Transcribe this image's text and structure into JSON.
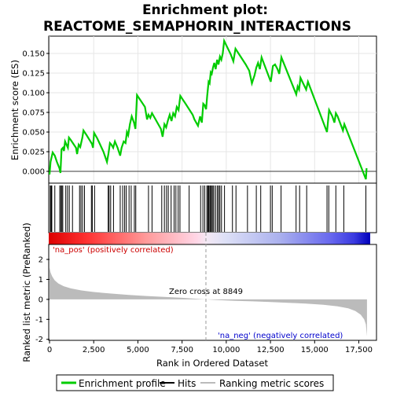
{
  "chart_data": {
    "type": "line",
    "title_line1": "Enrichment plot:",
    "title_line2": "REACTOME_SEMAPHORIN_INTERACTIONS",
    "x_label": "Rank in Ordered Dataset",
    "x_range": [
      0,
      18500
    ],
    "x_ticks": [
      0,
      2500,
      5000,
      7500,
      10000,
      12500,
      15000,
      17500
    ],
    "x_tick_labels": [
      "0",
      "2,500",
      "5,000",
      "7,500",
      "10,000",
      "12,500",
      "15,000",
      "17,500"
    ],
    "enrichment": {
      "y_label": "Enrichment score (ES)",
      "y_range": [
        -0.015,
        0.172
      ],
      "y_ticks": [
        0.0,
        0.025,
        0.05,
        0.075,
        0.1,
        0.125,
        0.15
      ],
      "y_tick_labels": [
        "0.000",
        "0.025",
        "0.050",
        "0.075",
        "0.100",
        "0.125",
        "0.150"
      ],
      "color": "#00cc00",
      "points": [
        [
          0,
          -0.004
        ],
        [
          60,
          0.012
        ],
        [
          180,
          0.024
        ],
        [
          300,
          0.02
        ],
        [
          420,
          0.012
        ],
        [
          560,
          0.004
        ],
        [
          620,
          -0.002
        ],
        [
          680,
          0.028
        ],
        [
          760,
          0.03
        ],
        [
          820,
          0.026
        ],
        [
          880,
          0.038
        ],
        [
          960,
          0.034
        ],
        [
          1040,
          0.03
        ],
        [
          1100,
          0.043
        ],
        [
          1200,
          0.04
        ],
        [
          1500,
          0.03
        ],
        [
          1560,
          0.022
        ],
        [
          1650,
          0.034
        ],
        [
          1740,
          0.031
        ],
        [
          1860,
          0.043
        ],
        [
          1920,
          0.052
        ],
        [
          2100,
          0.046
        ],
        [
          2400,
          0.035
        ],
        [
          2460,
          0.03
        ],
        [
          2520,
          0.049
        ],
        [
          2700,
          0.042
        ],
        [
          3050,
          0.025
        ],
        [
          3250,
          0.012
        ],
        [
          3330,
          0.022
        ],
        [
          3420,
          0.036
        ],
        [
          3500,
          0.034
        ],
        [
          3600,
          0.03
        ],
        [
          3700,
          0.038
        ],
        [
          3850,
          0.03
        ],
        [
          4000,
          0.02
        ],
        [
          4080,
          0.03
        ],
        [
          4200,
          0.038
        ],
        [
          4300,
          0.036
        ],
        [
          4380,
          0.05
        ],
        [
          4450,
          0.046
        ],
        [
          4550,
          0.06
        ],
        [
          4650,
          0.07
        ],
        [
          4780,
          0.062
        ],
        [
          4860,
          0.054
        ],
        [
          4950,
          0.097
        ],
        [
          5400,
          0.082
        ],
        [
          5520,
          0.066
        ],
        [
          5600,
          0.072
        ],
        [
          5700,
          0.068
        ],
        [
          5800,
          0.074
        ],
        [
          6300,
          0.054
        ],
        [
          6400,
          0.044
        ],
        [
          6500,
          0.06
        ],
        [
          6600,
          0.056
        ],
        [
          6700,
          0.065
        ],
        [
          6800,
          0.072
        ],
        [
          6900,
          0.064
        ],
        [
          7000,
          0.074
        ],
        [
          7100,
          0.07
        ],
        [
          7200,
          0.082
        ],
        [
          7300,
          0.078
        ],
        [
          7400,
          0.096
        ],
        [
          7700,
          0.086
        ],
        [
          8100,
          0.072
        ],
        [
          8200,
          0.066
        ],
        [
          8400,
          0.058
        ],
        [
          8520,
          0.07
        ],
        [
          8620,
          0.062
        ],
        [
          8700,
          0.086
        ],
        [
          8780,
          0.084
        ],
        [
          8860,
          0.079
        ],
        [
          8920,
          0.096
        ],
        [
          9000,
          0.114
        ],
        [
          9060,
          0.112
        ],
        [
          9120,
          0.126
        ],
        [
          9180,
          0.124
        ],
        [
          9250,
          0.132
        ],
        [
          9320,
          0.138
        ],
        [
          9400,
          0.13
        ],
        [
          9480,
          0.142
        ],
        [
          9560,
          0.136
        ],
        [
          9640,
          0.146
        ],
        [
          9720,
          0.142
        ],
        [
          9800,
          0.15
        ],
        [
          9880,
          0.166
        ],
        [
          10250,
          0.149
        ],
        [
          10400,
          0.14
        ],
        [
          10520,
          0.156
        ],
        [
          11100,
          0.136
        ],
        [
          11300,
          0.128
        ],
        [
          11450,
          0.112
        ],
        [
          11600,
          0.122
        ],
        [
          11700,
          0.132
        ],
        [
          11800,
          0.138
        ],
        [
          11900,
          0.13
        ],
        [
          12000,
          0.145
        ],
        [
          12520,
          0.114
        ],
        [
          12640,
          0.134
        ],
        [
          12760,
          0.136
        ],
        [
          12900,
          0.13
        ],
        [
          13000,
          0.124
        ],
        [
          13120,
          0.145
        ],
        [
          13960,
          0.098
        ],
        [
          14040,
          0.108
        ],
        [
          14120,
          0.104
        ],
        [
          14200,
          0.119
        ],
        [
          14520,
          0.104
        ],
        [
          14620,
          0.114
        ],
        [
          15700,
          0.05
        ],
        [
          15820,
          0.078
        ],
        [
          16000,
          0.07
        ],
        [
          16120,
          0.062
        ],
        [
          16200,
          0.074
        ],
        [
          16300,
          0.07
        ],
        [
          16600,
          0.052
        ],
        [
          16680,
          0.06
        ],
        [
          17900,
          -0.01
        ],
        [
          17940,
          0.004
        ]
      ],
      "hits": [
        40,
        90,
        130,
        300,
        580,
        640,
        700,
        750,
        920,
        1020,
        1120,
        1300,
        1700,
        1780,
        1870,
        1980,
        2370,
        2420,
        2550,
        3320,
        3370,
        3460,
        3620,
        4000,
        4140,
        4250,
        4340,
        4500,
        4620,
        4800,
        4880,
        5600,
        5800,
        6350,
        6500,
        6620,
        6720,
        6880,
        7050,
        7150,
        7280,
        7380,
        7900,
        8550,
        8680,
        8780,
        8900,
        8960,
        9010,
        9070,
        9120,
        9170,
        9240,
        9300,
        9400,
        9500,
        9570,
        9640,
        9730,
        9900,
        10350,
        10550,
        11200,
        11700,
        11950,
        12500,
        12600,
        13100,
        13950,
        14150,
        14550,
        15700,
        15800,
        16200,
        16650,
        17900
      ]
    },
    "metric": {
      "y_label": "Ranked list metric (PreRanked)",
      "y_range": [
        -2.05,
        2.75
      ],
      "y_ticks": [
        -2,
        -1,
        0,
        1,
        2
      ],
      "y_tick_labels": [
        "-2",
        "-1",
        "0",
        "1",
        "2"
      ],
      "color": "#bbbbbb",
      "zero_cross": 8849,
      "zero_cross_label": "Zero cross at 8849",
      "pos_label": "'na_pos' (positively correlated)",
      "neg_label": "'na_neg' (negatively correlated)",
      "pos_color": "#ff0000",
      "neg_color": "#0000ff",
      "points": [
        [
          0,
          1.6
        ],
        [
          60,
          1.35
        ],
        [
          150,
          1.15
        ],
        [
          300,
          0.95
        ],
        [
          500,
          0.8
        ],
        [
          800,
          0.66
        ],
        [
          1200,
          0.55
        ],
        [
          1800,
          0.45
        ],
        [
          2500,
          0.37
        ],
        [
          3500,
          0.29
        ],
        [
          4500,
          0.22
        ],
        [
          5500,
          0.17
        ],
        [
          6500,
          0.12
        ],
        [
          7500,
          0.08
        ],
        [
          8500,
          0.02
        ],
        [
          8849,
          0.0
        ],
        [
          9500,
          -0.03
        ],
        [
          10500,
          -0.07
        ],
        [
          11500,
          -0.1
        ],
        [
          12500,
          -0.13
        ],
        [
          13500,
          -0.17
        ],
        [
          14500,
          -0.21
        ],
        [
          15500,
          -0.27
        ],
        [
          16300,
          -0.35
        ],
        [
          16900,
          -0.45
        ],
        [
          17300,
          -0.58
        ],
        [
          17600,
          -0.76
        ],
        [
          17800,
          -1.0
        ],
        [
          17900,
          -1.25
        ],
        [
          17960,
          -1.85
        ]
      ]
    },
    "legend": [
      {
        "label": "Enrichment profile",
        "color": "#00cc00"
      },
      {
        "label": "Hits",
        "color": "#000000"
      },
      {
        "label": "Ranking metric scores",
        "color": "#bbbbbb"
      }
    ]
  }
}
